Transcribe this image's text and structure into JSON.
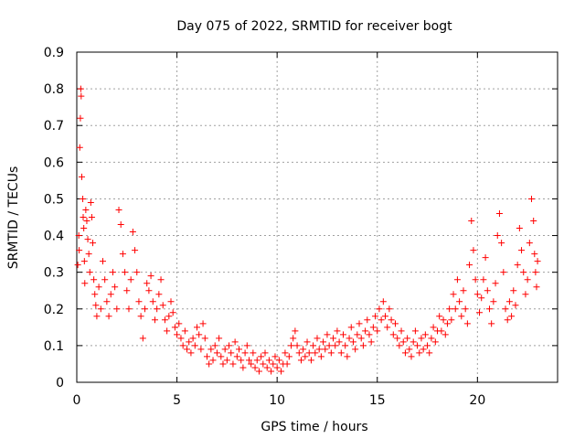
{
  "chart_data": {
    "type": "scatter",
    "title": "Day 075 of 2022, SRMTID for receiver bogt",
    "xlabel": "GPS time / hours",
    "ylabel": "SRMTID / TECUs",
    "xlim": [
      0,
      24
    ],
    "ylim": [
      0,
      0.9
    ],
    "xticks": [
      0,
      5,
      10,
      15,
      20
    ],
    "yticks": [
      0,
      0.1,
      0.2,
      0.3,
      0.4,
      0.5,
      0.6,
      0.7,
      0.8,
      0.9
    ],
    "xtick_labels": [
      "0",
      "5",
      "10",
      "15",
      "20"
    ],
    "ytick_labels": [
      "0",
      "0.1",
      "0.2",
      "0.3",
      "0.4",
      "0.5",
      "0.6",
      "0.7",
      "0.8",
      "0.9"
    ],
    "grid": true,
    "marker": "+",
    "color": "#ff0000",
    "series": [
      {
        "name": "SRMTID",
        "points": [
          [
            0.05,
            0.32
          ],
          [
            0.1,
            0.4
          ],
          [
            0.12,
            0.36
          ],
          [
            0.15,
            0.64
          ],
          [
            0.18,
            0.72
          ],
          [
            0.2,
            0.8
          ],
          [
            0.22,
            0.78
          ],
          [
            0.25,
            0.56
          ],
          [
            0.3,
            0.5
          ],
          [
            0.32,
            0.45
          ],
          [
            0.35,
            0.42
          ],
          [
            0.38,
            0.33
          ],
          [
            0.4,
            0.27
          ],
          [
            0.45,
            0.47
          ],
          [
            0.5,
            0.44
          ],
          [
            0.55,
            0.39
          ],
          [
            0.6,
            0.35
          ],
          [
            0.65,
            0.3
          ],
          [
            0.7,
            0.49
          ],
          [
            0.75,
            0.45
          ],
          [
            0.8,
            0.38
          ],
          [
            0.85,
            0.28
          ],
          [
            0.9,
            0.24
          ],
          [
            0.95,
            0.21
          ],
          [
            1.0,
            0.18
          ],
          [
            1.1,
            0.26
          ],
          [
            1.2,
            0.2
          ],
          [
            1.3,
            0.33
          ],
          [
            1.4,
            0.28
          ],
          [
            1.5,
            0.22
          ],
          [
            1.6,
            0.18
          ],
          [
            1.7,
            0.24
          ],
          [
            1.8,
            0.3
          ],
          [
            1.9,
            0.26
          ],
          [
            2.0,
            0.2
          ],
          [
            2.1,
            0.47
          ],
          [
            2.2,
            0.43
          ],
          [
            2.3,
            0.35
          ],
          [
            2.4,
            0.3
          ],
          [
            2.5,
            0.25
          ],
          [
            2.6,
            0.2
          ],
          [
            2.7,
            0.28
          ],
          [
            2.8,
            0.41
          ],
          [
            2.9,
            0.36
          ],
          [
            3.0,
            0.3
          ],
          [
            3.1,
            0.22
          ],
          [
            3.2,
            0.18
          ],
          [
            3.3,
            0.12
          ],
          [
            3.4,
            0.2
          ],
          [
            3.5,
            0.27
          ],
          [
            3.6,
            0.25
          ],
          [
            3.7,
            0.29
          ],
          [
            3.8,
            0.22
          ],
          [
            3.9,
            0.17
          ],
          [
            4.0,
            0.2
          ],
          [
            4.1,
            0.24
          ],
          [
            4.2,
            0.28
          ],
          [
            4.3,
            0.21
          ],
          [
            4.4,
            0.17
          ],
          [
            4.5,
            0.14
          ],
          [
            4.6,
            0.18
          ],
          [
            4.7,
            0.22
          ],
          [
            4.8,
            0.19
          ],
          [
            4.9,
            0.15
          ],
          [
            5.0,
            0.13
          ],
          [
            5.1,
            0.16
          ],
          [
            5.2,
            0.12
          ],
          [
            5.3,
            0.1
          ],
          [
            5.4,
            0.14
          ],
          [
            5.5,
            0.09
          ],
          [
            5.6,
            0.11
          ],
          [
            5.7,
            0.08
          ],
          [
            5.8,
            0.12
          ],
          [
            5.9,
            0.1
          ],
          [
            6.0,
            0.15
          ],
          [
            6.1,
            0.13
          ],
          [
            6.2,
            0.09
          ],
          [
            6.3,
            0.16
          ],
          [
            6.4,
            0.12
          ],
          [
            6.5,
            0.07
          ],
          [
            6.6,
            0.05
          ],
          [
            6.7,
            0.09
          ],
          [
            6.8,
            0.06
          ],
          [
            6.9,
            0.1
          ],
          [
            7.0,
            0.08
          ],
          [
            7.1,
            0.12
          ],
          [
            7.2,
            0.07
          ],
          [
            7.3,
            0.05
          ],
          [
            7.4,
            0.09
          ],
          [
            7.5,
            0.06
          ],
          [
            7.6,
            0.1
          ],
          [
            7.7,
            0.08
          ],
          [
            7.8,
            0.05
          ],
          [
            7.9,
            0.11
          ],
          [
            8.0,
            0.07
          ],
          [
            8.1,
            0.09
          ],
          [
            8.2,
            0.06
          ],
          [
            8.3,
            0.04
          ],
          [
            8.4,
            0.08
          ],
          [
            8.5,
            0.1
          ],
          [
            8.6,
            0.06
          ],
          [
            8.7,
            0.05
          ],
          [
            8.8,
            0.08
          ],
          [
            8.9,
            0.04
          ],
          [
            9.0,
            0.06
          ],
          [
            9.1,
            0.03
          ],
          [
            9.2,
            0.07
          ],
          [
            9.3,
            0.05
          ],
          [
            9.4,
            0.08
          ],
          [
            9.5,
            0.04
          ],
          [
            9.6,
            0.06
          ],
          [
            9.7,
            0.03
          ],
          [
            9.8,
            0.05
          ],
          [
            9.9,
            0.07
          ],
          [
            10.0,
            0.04
          ],
          [
            10.1,
            0.06
          ],
          [
            10.2,
            0.03
          ],
          [
            10.3,
            0.05
          ],
          [
            10.4,
            0.08
          ],
          [
            10.5,
            0.05
          ],
          [
            10.6,
            0.07
          ],
          [
            10.7,
            0.1
          ],
          [
            10.8,
            0.12
          ],
          [
            10.9,
            0.14
          ],
          [
            11.0,
            0.1
          ],
          [
            11.1,
            0.08
          ],
          [
            11.2,
            0.06
          ],
          [
            11.3,
            0.09
          ],
          [
            11.4,
            0.07
          ],
          [
            11.5,
            0.11
          ],
          [
            11.6,
            0.08
          ],
          [
            11.7,
            0.06
          ],
          [
            11.8,
            0.1
          ],
          [
            11.9,
            0.08
          ],
          [
            12.0,
            0.12
          ],
          [
            12.1,
            0.09
          ],
          [
            12.2,
            0.07
          ],
          [
            12.3,
            0.11
          ],
          [
            12.4,
            0.09
          ],
          [
            12.5,
            0.13
          ],
          [
            12.6,
            0.1
          ],
          [
            12.7,
            0.08
          ],
          [
            12.8,
            0.12
          ],
          [
            12.9,
            0.1
          ],
          [
            13.0,
            0.14
          ],
          [
            13.1,
            0.11
          ],
          [
            13.2,
            0.08
          ],
          [
            13.3,
            0.13
          ],
          [
            13.4,
            0.1
          ],
          [
            13.5,
            0.07
          ],
          [
            13.6,
            0.12
          ],
          [
            13.7,
            0.15
          ],
          [
            13.8,
            0.11
          ],
          [
            13.9,
            0.09
          ],
          [
            14.0,
            0.13
          ],
          [
            14.1,
            0.16
          ],
          [
            14.2,
            0.12
          ],
          [
            14.3,
            0.1
          ],
          [
            14.4,
            0.14
          ],
          [
            14.5,
            0.17
          ],
          [
            14.6,
            0.13
          ],
          [
            14.7,
            0.11
          ],
          [
            14.8,
            0.15
          ],
          [
            14.9,
            0.18
          ],
          [
            15.0,
            0.14
          ],
          [
            15.1,
            0.2
          ],
          [
            15.2,
            0.17
          ],
          [
            15.3,
            0.22
          ],
          [
            15.4,
            0.18
          ],
          [
            15.5,
            0.15
          ],
          [
            15.6,
            0.2
          ],
          [
            15.7,
            0.17
          ],
          [
            15.8,
            0.13
          ],
          [
            15.9,
            0.16
          ],
          [
            16.0,
            0.12
          ],
          [
            16.1,
            0.1
          ],
          [
            16.2,
            0.14
          ],
          [
            16.3,
            0.11
          ],
          [
            16.4,
            0.08
          ],
          [
            16.5,
            0.12
          ],
          [
            16.6,
            0.09
          ],
          [
            16.7,
            0.07
          ],
          [
            16.8,
            0.11
          ],
          [
            16.9,
            0.14
          ],
          [
            17.0,
            0.1
          ],
          [
            17.1,
            0.08
          ],
          [
            17.2,
            0.12
          ],
          [
            17.3,
            0.09
          ],
          [
            17.4,
            0.13
          ],
          [
            17.5,
            0.1
          ],
          [
            17.6,
            0.08
          ],
          [
            17.7,
            0.12
          ],
          [
            17.8,
            0.15
          ],
          [
            17.9,
            0.11
          ],
          [
            18.0,
            0.14
          ],
          [
            18.1,
            0.18
          ],
          [
            18.2,
            0.14
          ],
          [
            18.3,
            0.17
          ],
          [
            18.4,
            0.13
          ],
          [
            18.5,
            0.16
          ],
          [
            18.6,
            0.2
          ],
          [
            18.7,
            0.17
          ],
          [
            18.8,
            0.24
          ],
          [
            18.9,
            0.2
          ],
          [
            19.0,
            0.28
          ],
          [
            19.1,
            0.22
          ],
          [
            19.2,
            0.18
          ],
          [
            19.3,
            0.25
          ],
          [
            19.4,
            0.2
          ],
          [
            19.5,
            0.16
          ],
          [
            19.6,
            0.32
          ],
          [
            19.7,
            0.44
          ],
          [
            19.8,
            0.36
          ],
          [
            19.9,
            0.28
          ],
          [
            20.0,
            0.24
          ],
          [
            20.1,
            0.19
          ],
          [
            20.2,
            0.23
          ],
          [
            20.3,
            0.28
          ],
          [
            20.4,
            0.34
          ],
          [
            20.5,
            0.25
          ],
          [
            20.6,
            0.2
          ],
          [
            20.7,
            0.16
          ],
          [
            20.8,
            0.22
          ],
          [
            20.9,
            0.27
          ],
          [
            21.0,
            0.4
          ],
          [
            21.1,
            0.46
          ],
          [
            21.2,
            0.38
          ],
          [
            21.3,
            0.3
          ],
          [
            21.4,
            0.2
          ],
          [
            21.5,
            0.17
          ],
          [
            21.6,
            0.22
          ],
          [
            21.7,
            0.18
          ],
          [
            21.8,
            0.25
          ],
          [
            21.9,
            0.21
          ],
          [
            22.0,
            0.32
          ],
          [
            22.1,
            0.42
          ],
          [
            22.2,
            0.36
          ],
          [
            22.3,
            0.3
          ],
          [
            22.4,
            0.24
          ],
          [
            22.5,
            0.28
          ],
          [
            22.6,
            0.38
          ],
          [
            22.7,
            0.5
          ],
          [
            22.8,
            0.44
          ],
          [
            22.85,
            0.35
          ],
          [
            22.9,
            0.3
          ],
          [
            22.95,
            0.26
          ],
          [
            23.0,
            0.33
          ]
        ]
      }
    ]
  }
}
